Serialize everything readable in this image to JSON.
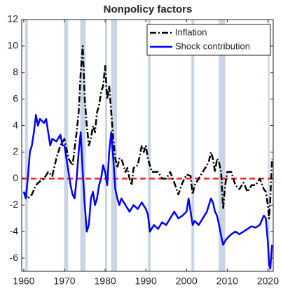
{
  "chart_data": {
    "type": "line",
    "title": "Nonpolicy factors",
    "xlim": [
      1959.5,
      2021.3
    ],
    "ylim": [
      -7,
      12
    ],
    "xticks": [
      1960,
      1970,
      1980,
      1990,
      2000,
      2010,
      2020
    ],
    "yticks": [
      -6,
      -4,
      -2,
      0,
      2,
      4,
      6,
      8,
      10,
      12
    ],
    "legend": "upper right",
    "reference_line": {
      "value": 0,
      "color": "#ff2020"
    },
    "recessions": {
      "color": "#c9d5e4",
      "ranges": [
        [
          1960.3,
          1961.0
        ],
        [
          1969.9,
          1970.9
        ],
        [
          1973.9,
          1975.2
        ],
        [
          1980.0,
          1980.5
        ],
        [
          1981.5,
          1982.9
        ],
        [
          1990.5,
          1991.2
        ],
        [
          2001.2,
          2001.9
        ],
        [
          2007.9,
          2009.5
        ],
        [
          2020.0,
          2020.4
        ]
      ]
    },
    "series": [
      {
        "name": "Inflation",
        "color": "#000000",
        "style": "dashdot",
        "x": [
          1960,
          1961,
          1962,
          1963,
          1964,
          1965,
          1966,
          1967,
          1968,
          1969,
          1970,
          1971,
          1972,
          1973,
          1973.5,
          1974,
          1974.5,
          1975,
          1975.5,
          1976,
          1976.5,
          1977,
          1977.5,
          1978,
          1978.5,
          1979,
          1979.5,
          1980,
          1980.5,
          1981,
          1981.5,
          1982,
          1982.5,
          1983,
          1983.5,
          1984,
          1984.5,
          1985,
          1985.5,
          1986,
          1986.5,
          1987,
          1988,
          1989,
          1989.5,
          1990,
          1990.5,
          1991,
          1991.5,
          1992,
          1993,
          1994,
          1995,
          1996,
          1997,
          1998,
          1999,
          2000,
          2001,
          2001.5,
          2002,
          2003,
          2004,
          2005,
          2005.5,
          2006,
          2006.5,
          2007,
          2007.5,
          2008,
          2008.5,
          2009,
          2009.5,
          2010,
          2011,
          2012,
          2013,
          2014,
          2015,
          2016,
          2017,
          2018,
          2019,
          2019.5,
          2020,
          2020.3,
          2020.6,
          2021
        ],
        "values": [
          -1,
          -1.5,
          -1.2,
          -0.5,
          -0.2,
          0,
          0.5,
          0.2,
          1.5,
          2.5,
          3,
          1.5,
          1,
          3.5,
          5,
          8,
          10,
          6,
          4,
          2.5,
          3,
          4,
          3.5,
          5,
          5.5,
          6.5,
          7,
          8.5,
          6,
          7,
          5,
          3,
          1.5,
          0.8,
          1.5,
          1.5,
          1,
          0.5,
          0.8,
          0,
          -0.5,
          0.8,
          1,
          2.5,
          2,
          2.5,
          1.5,
          1,
          0.5,
          0.5,
          0.5,
          0,
          0,
          0.5,
          -0.3,
          -1.2,
          -0.3,
          0.3,
          0.2,
          -1.2,
          -0.5,
          0,
          0.5,
          1,
          1.3,
          2,
          1.5,
          0.5,
          1.5,
          1.2,
          0.5,
          -2.3,
          -0.5,
          0.5,
          0.5,
          -0.5,
          -0.8,
          -0.3,
          -1,
          -0.5,
          -0.5,
          0,
          -0.8,
          -1,
          -2,
          -3,
          -1.5,
          1.5
        ]
      },
      {
        "name": "Shock contribution",
        "color": "#0000ff",
        "style": "solid",
        "x": [
          1960,
          1960.5,
          1961,
          1961.5,
          1962,
          1962.5,
          1963,
          1963.5,
          1964,
          1965,
          1965.5,
          1966,
          1966.5,
          1967,
          1968,
          1969,
          1969.5,
          1970,
          1970.5,
          1971,
          1971.5,
          1972,
          1972.5,
          1973,
          1973.5,
          1974,
          1974.5,
          1975,
          1975.5,
          1976,
          1976.5,
          1977,
          1977.5,
          1978,
          1978.5,
          1979,
          1979.5,
          1980,
          1980.5,
          1981,
          1981.5,
          1982,
          1982.5,
          1983,
          1983.5,
          1984,
          1985,
          1986,
          1987,
          1988,
          1989,
          1990,
          1990.5,
          1991,
          1992,
          1993,
          1994,
          1995,
          1996,
          1997,
          1998,
          1999,
          2000,
          2000.5,
          2001,
          2001.5,
          2002,
          2003,
          2004,
          2005,
          2006,
          2006.5,
          2007,
          2007.5,
          2008,
          2008.5,
          2009,
          2009.5,
          2010,
          2011,
          2012,
          2013,
          2014,
          2015,
          2016,
          2017,
          2018,
          2019,
          2019.5,
          2020,
          2020.3,
          2020.6,
          2021
        ],
        "values": [
          -1,
          -1.5,
          0,
          2,
          2.5,
          3.5,
          4.8,
          4,
          4.5,
          4.2,
          4.5,
          3.5,
          2.5,
          3,
          2.8,
          3.3,
          2.5,
          2.5,
          1.5,
          0.5,
          -0.5,
          -1.2,
          -1.5,
          0,
          2,
          3.5,
          0.5,
          -2,
          -4,
          -3.5,
          -1.5,
          -1,
          -2,
          -1.5,
          -0.5,
          0,
          1,
          0.5,
          -0.5,
          2,
          3.5,
          1.5,
          -0.8,
          -1.5,
          -2,
          -1.5,
          -2,
          -2.5,
          -2,
          -2.3,
          -1.8,
          -2.3,
          -2.7,
          -4,
          -3.5,
          -3.8,
          -3.3,
          -3.5,
          -3,
          -2.5,
          -3,
          -2.8,
          -2.5,
          -1.5,
          -2.5,
          -3.5,
          -3.2,
          -3.5,
          -3,
          -2.5,
          -1.5,
          -1.8,
          -2.5,
          -2.8,
          -3.5,
          -4.3,
          -5,
          -4.7,
          -4.5,
          -4.2,
          -4,
          -4.2,
          -4,
          -3.8,
          -3.6,
          -3.7,
          -3.5,
          -2.8,
          -3,
          -4.8,
          -6.5,
          -6.8,
          -5
        ]
      }
    ]
  }
}
